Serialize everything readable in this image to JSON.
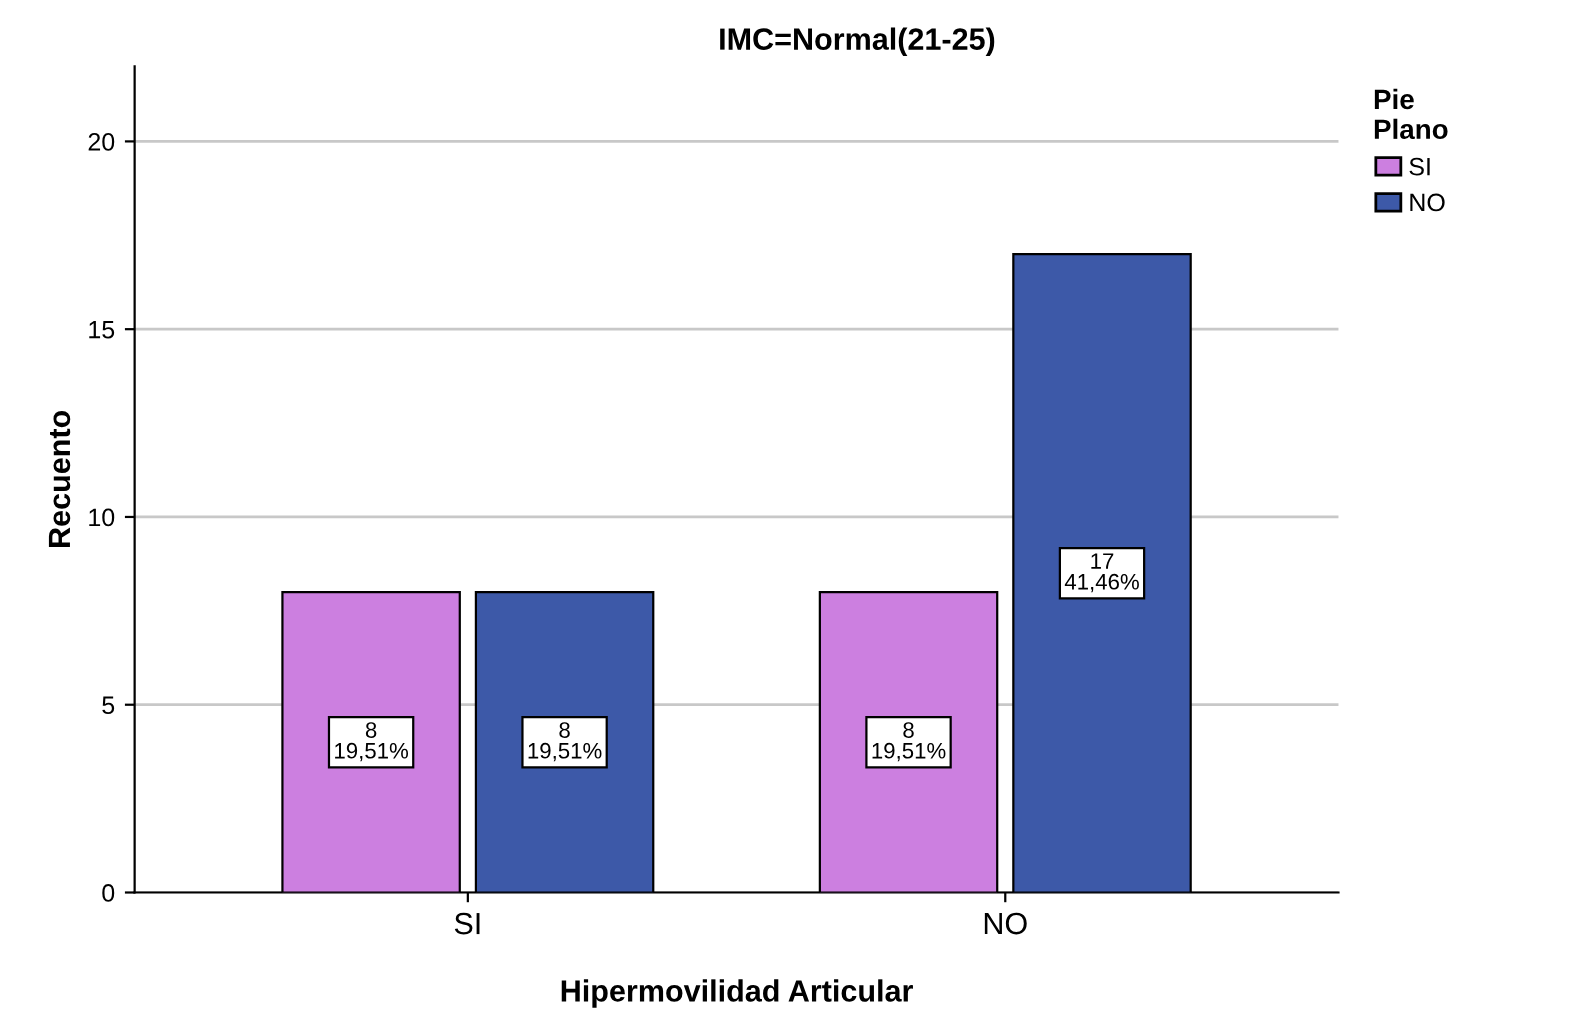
{
  "chart_data": {
    "type": "bar",
    "title": "IMC=Normal(21-25)",
    "xlabel": "Hipermovilidad Articular",
    "ylabel": "Recuento",
    "legend_title": "Pie\nPlano",
    "categories": [
      "SI",
      "NO"
    ],
    "series": [
      {
        "name": "SI",
        "color": "#cc7fe0",
        "values": [
          8,
          8
        ],
        "value_labels": [
          "8\n19,51%",
          "8\n19,51%"
        ]
      },
      {
        "name": "NO",
        "color": "#3d59a8",
        "values": [
          8,
          17
        ],
        "value_labels": [
          "8\n19,51%",
          "17\n41,46%"
        ]
      }
    ],
    "ylim": [
      0,
      22
    ],
    "yticks": [
      0,
      5,
      10,
      15,
      20
    ],
    "grid": "y",
    "legend": "top right"
  }
}
